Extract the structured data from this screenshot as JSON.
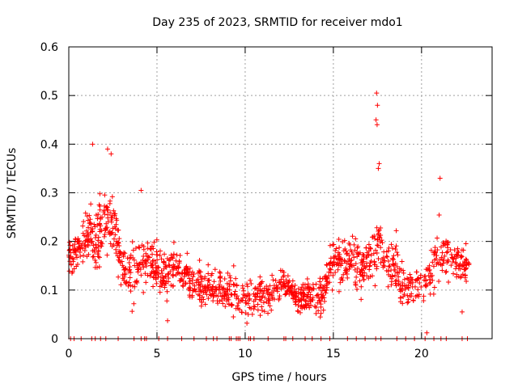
{
  "chart_data": {
    "type": "scatter",
    "title": "Day 235 of 2023, SRMTID for receiver mdo1",
    "xlabel": "GPS time / hours",
    "ylabel": "SRMTID / TECUs",
    "xlim": [
      0,
      24
    ],
    "ylim": [
      0,
      0.6
    ],
    "x_ticks": [
      0,
      5,
      10,
      15,
      20
    ],
    "x_tick_labels": [
      "0",
      "5",
      "10",
      "15",
      "20"
    ],
    "y_ticks": [
      0,
      0.1,
      0.2,
      0.3,
      0.4,
      0.5,
      0.6
    ],
    "y_tick_labels": [
      "0",
      "0.1",
      "0.2",
      "0.3",
      "0.4",
      "0.5",
      "0.6"
    ],
    "grid": true,
    "marker": "plus",
    "color": "#ff0000",
    "data_x_range": [
      0,
      22.7
    ],
    "envelope": {
      "hours": [
        0,
        0.5,
        1,
        1.5,
        2,
        2.5,
        3,
        3.5,
        4,
        4.5,
        5,
        5.5,
        6,
        6.5,
        7,
        7.5,
        8,
        8.5,
        9,
        9.5,
        10,
        10.5,
        11,
        11.5,
        12,
        12.5,
        13,
        13.5,
        14,
        14.5,
        15,
        15.5,
        16,
        16.5,
        17,
        17.5,
        18,
        18.5,
        19,
        19.5,
        20,
        20.5,
        21,
        21.5,
        22,
        22.5,
        22.7
      ],
      "center": [
        0.17,
        0.19,
        0.21,
        0.2,
        0.24,
        0.25,
        0.14,
        0.13,
        0.15,
        0.16,
        0.14,
        0.13,
        0.14,
        0.13,
        0.12,
        0.11,
        0.1,
        0.1,
        0.1,
        0.09,
        0.08,
        0.09,
        0.09,
        0.09,
        0.11,
        0.11,
        0.08,
        0.09,
        0.08,
        0.09,
        0.17,
        0.15,
        0.17,
        0.15,
        0.16,
        0.19,
        0.16,
        0.15,
        0.1,
        0.11,
        0.11,
        0.13,
        0.18,
        0.17,
        0.16,
        0.15,
        0.15
      ],
      "spread": [
        0.04,
        0.05,
        0.06,
        0.06,
        0.07,
        0.07,
        0.05,
        0.05,
        0.06,
        0.05,
        0.05,
        0.05,
        0.05,
        0.04,
        0.04,
        0.04,
        0.04,
        0.04,
        0.04,
        0.04,
        0.04,
        0.04,
        0.04,
        0.03,
        0.03,
        0.03,
        0.03,
        0.03,
        0.03,
        0.04,
        0.05,
        0.05,
        0.05,
        0.05,
        0.05,
        0.06,
        0.05,
        0.05,
        0.04,
        0.04,
        0.04,
        0.05,
        0.06,
        0.05,
        0.05,
        0.04,
        0.04
      ]
    },
    "peaks": [
      {
        "x": 1.35,
        "y": 0.4
      },
      {
        "x": 2.2,
        "y": 0.39
      },
      {
        "x": 2.4,
        "y": 0.38
      },
      {
        "x": 4.1,
        "y": 0.305
      },
      {
        "x": 17.45,
        "y": 0.505
      },
      {
        "x": 17.5,
        "y": 0.48
      },
      {
        "x": 17.42,
        "y": 0.45
      },
      {
        "x": 17.48,
        "y": 0.44
      },
      {
        "x": 17.6,
        "y": 0.36
      },
      {
        "x": 17.55,
        "y": 0.35
      },
      {
        "x": 21.05,
        "y": 0.33
      },
      {
        "x": 20.3,
        "y": 0.012
      },
      {
        "x": 22.3,
        "y": 0.055
      },
      {
        "x": 5.6,
        "y": 0.037
      }
    ],
    "zero_value_points": [
      0.1,
      0.3,
      0.7,
      1.3,
      1.5,
      1.8,
      2.1,
      2.8,
      3.7,
      4.1,
      4.3,
      4.4,
      5.1,
      5.6,
      6.4,
      7.1,
      7.8,
      8.2,
      8.4,
      9.1,
      9.2,
      9.5,
      9.6,
      9.7,
      10.2,
      10.3,
      10.5,
      11.3,
      12.2,
      12.3,
      12.7,
      13.4,
      13.8,
      14.3,
      14.8,
      15.8,
      16.3,
      16.8,
      17.4,
      17.7,
      18.6,
      19.1,
      19.6,
      20.2,
      20.7,
      21.1,
      21.4,
      22.3,
      22.6
    ],
    "total_points": 1400
  }
}
